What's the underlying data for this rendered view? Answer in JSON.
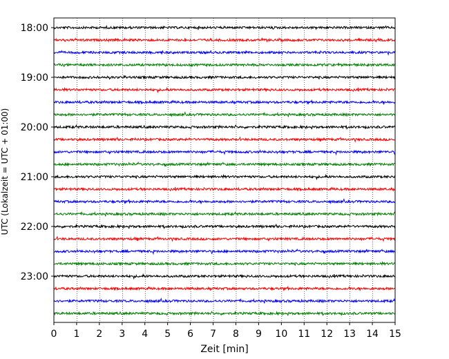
{
  "chart_data": {
    "type": "line",
    "subtype": "helicorder",
    "title": "",
    "xlabel": "Zeit  [min]",
    "ylabel": "UTC (Lokalzeit = UTC + 01:00)",
    "xlim": [
      0,
      15
    ],
    "x_ticks": [
      "0",
      "1",
      "2",
      "3",
      "4",
      "5",
      "6",
      "7",
      "8",
      "9",
      "10",
      "11",
      "12",
      "13",
      "14",
      "15"
    ],
    "y_ticks": [
      "18:00",
      "19:00",
      "20:00",
      "21:00",
      "22:00",
      "23:00"
    ],
    "grid": "vertical dotted at each minute",
    "trace_interval_minutes": 15,
    "traces": [
      {
        "start": "18:00",
        "color": "#000000"
      },
      {
        "start": "18:15",
        "color": "#ff0000"
      },
      {
        "start": "18:30",
        "color": "#0000ff"
      },
      {
        "start": "18:45",
        "color": "#008000"
      },
      {
        "start": "19:00",
        "color": "#000000"
      },
      {
        "start": "19:15",
        "color": "#ff0000"
      },
      {
        "start": "19:30",
        "color": "#0000ff"
      },
      {
        "start": "19:45",
        "color": "#008000"
      },
      {
        "start": "20:00",
        "color": "#000000"
      },
      {
        "start": "20:15",
        "color": "#ff0000"
      },
      {
        "start": "20:30",
        "color": "#0000ff"
      },
      {
        "start": "20:45",
        "color": "#008000"
      },
      {
        "start": "21:00",
        "color": "#000000"
      },
      {
        "start": "21:15",
        "color": "#ff0000"
      },
      {
        "start": "21:30",
        "color": "#0000ff"
      },
      {
        "start": "21:45",
        "color": "#008000"
      },
      {
        "start": "22:00",
        "color": "#000000"
      },
      {
        "start": "22:15",
        "color": "#ff0000"
      },
      {
        "start": "22:30",
        "color": "#0000ff"
      },
      {
        "start": "22:45",
        "color": "#008000"
      },
      {
        "start": "23:00",
        "color": "#000000"
      },
      {
        "start": "23:15",
        "color": "#ff0000"
      },
      {
        "start": "23:30",
        "color": "#0000ff"
      },
      {
        "start": "23:45",
        "color": "#008000"
      }
    ]
  }
}
